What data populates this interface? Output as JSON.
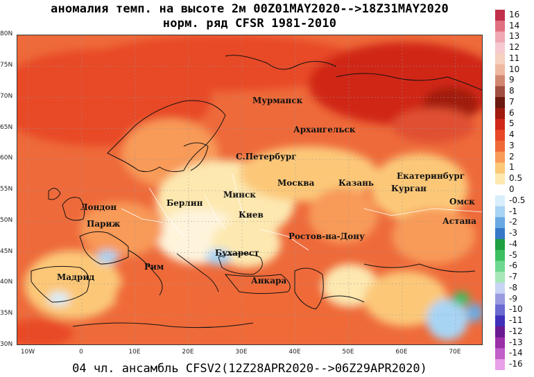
{
  "title_line1": "аномалия темп. на высоте 2м 00Z01MAY2020-->18Z31MAY2020",
  "title_line2": "норм. ряд CFSR 1981-2010",
  "footer": "04 чл. ансамбль CFSV2(12Z28APR2020-->06Z29APR2020)",
  "lat_labels": [
    "80N",
    "75N",
    "70N",
    "65N",
    "60N",
    "55N",
    "50N",
    "45N",
    "40N",
    "35N",
    "30N"
  ],
  "lon_labels": [
    "10W",
    "0",
    "10E",
    "20E",
    "30E",
    "40E",
    "50E",
    "60E",
    "70E"
  ],
  "cities": [
    {
      "name": "Мурманск"
    },
    {
      "name": "Архангельск"
    },
    {
      "name": "С.Петербург"
    },
    {
      "name": "Екатеринбург"
    },
    {
      "name": "Москва"
    },
    {
      "name": "Казань"
    },
    {
      "name": "Курган"
    },
    {
      "name": "Омск"
    },
    {
      "name": "Лондон"
    },
    {
      "name": "Берлин"
    },
    {
      "name": "Минск"
    },
    {
      "name": "Париж"
    },
    {
      "name": "Киев"
    },
    {
      "name": "Астана"
    },
    {
      "name": "Ростов-на-Дону"
    },
    {
      "name": "Бухарест"
    },
    {
      "name": "Рим"
    },
    {
      "name": "Мадрид"
    },
    {
      "name": "Анкара"
    }
  ],
  "colorbar": {
    "labels": [
      "16",
      "14",
      "13",
      "12",
      "11",
      "10",
      "9",
      "8",
      "7",
      "6",
      "5",
      "4",
      "3",
      "2",
      "1",
      "0.5",
      "0",
      "-0.5",
      "-1",
      "-2",
      "-3",
      "-4",
      "-5",
      "-6",
      "-7",
      "-8",
      "-9",
      "-10",
      "-11",
      "-12",
      "-13",
      "-14",
      "-16"
    ],
    "colors": [
      "#c0304a",
      "#e07080",
      "#f0a8b4",
      "#f6c8d0",
      "#f6d0c0",
      "#eeb8a0",
      "#d08870",
      "#a05040",
      "#6a1a10",
      "#a01a10",
      "#d02818",
      "#e84828",
      "#f06a38",
      "#f89a58",
      "#fcc878",
      "#fde8b0",
      "#ffffff",
      "#d8eefa",
      "#a8d4f4",
      "#6aaae4",
      "#3878c8",
      "#1ea040",
      "#3cc060",
      "#70d890",
      "#a8e8b8",
      "#c8d4f4",
      "#9a9ae0",
      "#6a6ad0",
      "#4030b8",
      "#6a1a90",
      "#9a30a8",
      "#c060c8",
      "#e8a0e8"
    ]
  }
}
